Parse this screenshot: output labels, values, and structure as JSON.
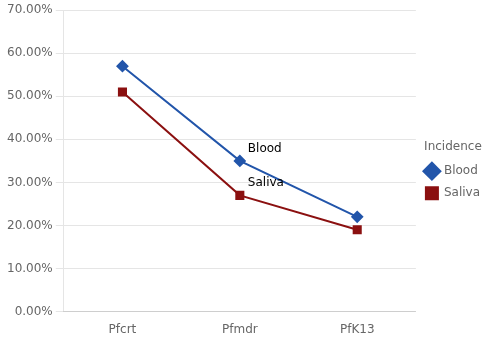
{
  "chart_data": {
    "type": "line",
    "categories": [
      "Pfcrt",
      "Pfmdr",
      "PfK13"
    ],
    "series": [
      {
        "name": "Blood",
        "color": "#2255AA",
        "marker": "diamond",
        "values": [
          0.57,
          0.35,
          0.22
        ]
      },
      {
        "name": "Saliva",
        "color": "#8B1010",
        "marker": "square",
        "values": [
          0.51,
          0.27,
          0.19
        ]
      }
    ],
    "ylim": [
      0.0,
      0.7
    ],
    "yticks": [
      {
        "value": 0.0,
        "label": "0.00%"
      },
      {
        "value": 0.1,
        "label": "10.00%"
      },
      {
        "value": 0.2,
        "label": "20.00%"
      },
      {
        "value": 0.3,
        "label": "30.00%"
      },
      {
        "value": 0.4,
        "label": "40.00%"
      },
      {
        "value": 0.5,
        "label": "50.00%"
      },
      {
        "value": 0.6,
        "label": "60.00%"
      },
      {
        "value": 0.7,
        "label": "70.00%"
      }
    ],
    "grid": true,
    "legend": "right",
    "legend_title": "Incidence",
    "annotations": [
      "Blood",
      "Saliva"
    ]
  }
}
